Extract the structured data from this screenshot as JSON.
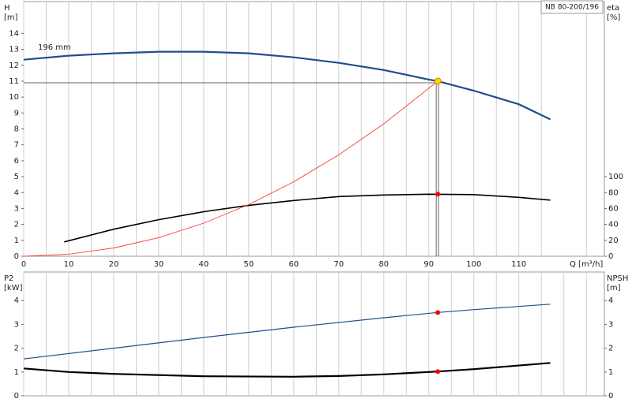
{
  "chart_data": [
    {
      "type": "line",
      "title": "NB 80-200/196",
      "ylabel": [
        "H",
        "[m]"
      ],
      "y2label": [
        "eta",
        "[%]"
      ],
      "xlabel": "Q [m³/h]",
      "annotation": "196 mm",
      "xlim": [
        0,
        129
      ],
      "xticks": [
        0,
        10,
        20,
        30,
        40,
        50,
        60,
        70,
        80,
        90,
        100,
        110
      ],
      "xgrid": [
        5,
        15,
        25,
        35,
        45,
        55,
        65,
        75,
        85,
        95,
        105,
        115,
        125
      ],
      "ylim": [
        0,
        16
      ],
      "yticks": [
        0,
        1,
        2,
        3,
        4,
        5,
        6,
        7,
        8,
        9,
        10,
        11,
        12,
        13,
        14
      ],
      "y2lim": [
        0,
        320
      ],
      "y2ticks": [
        0,
        20,
        40,
        60,
        80,
        100
      ],
      "series": [
        {
          "color": "#1f4e8c",
          "linewidth": 2.2,
          "x": [
            0,
            10,
            20,
            30,
            40,
            50,
            60,
            70,
            80,
            90,
            92,
            100,
            110,
            117
          ],
          "values": [
            12.35,
            12.6,
            12.75,
            12.85,
            12.85,
            12.75,
            12.5,
            12.15,
            11.7,
            11.1,
            11.0,
            10.4,
            9.55,
            8.6
          ]
        },
        {
          "axis": "y2",
          "color": "#000000",
          "linewidth": 1.6,
          "x": [
            9,
            20,
            30,
            40,
            50,
            60,
            70,
            80,
            90,
            100,
            110,
            117
          ],
          "values": [
            18,
            34,
            46,
            56,
            64,
            70,
            75,
            77,
            78,
            77.5,
            74,
            70.5
          ]
        },
        {
          "color": "#ff3b3b",
          "linewidth": 0.9,
          "x": [
            0,
            10,
            20,
            30,
            40,
            50,
            60,
            70,
            80,
            92
          ],
          "values": [
            0,
            0.13,
            0.52,
            1.17,
            2.08,
            3.25,
            4.68,
            6.37,
            8.32,
            11.0
          ]
        }
      ],
      "duty_point": {
        "x": 92,
        "y": 11.0,
        "y2": 78,
        "color": "#ffd700",
        "line_color": "#666666",
        "marker_color": "#ff0000"
      }
    },
    {
      "type": "line",
      "ylabel": [
        "P2",
        "[kW]"
      ],
      "y2label": [
        "NPSH",
        "[m]"
      ],
      "xlim": [
        0,
        129
      ],
      "xgrid": [
        0,
        5,
        10,
        15,
        20,
        25,
        30,
        35,
        40,
        45,
        50,
        55,
        60,
        65,
        70,
        75,
        80,
        85,
        90,
        95,
        100,
        105,
        110,
        115,
        120,
        125
      ],
      "ylim": [
        0,
        5.2
      ],
      "yticks": [
        0,
        1,
        2,
        3,
        4
      ],
      "y2lim": [
        0,
        5.2
      ],
      "y2ticks": [
        0,
        1,
        2,
        3,
        4
      ],
      "series": [
        {
          "color": "#1f4e8c",
          "linewidth": 1.2,
          "x": [
            0,
            20,
            40,
            60,
            80,
            92,
            100,
            117
          ],
          "values": [
            1.55,
            2.0,
            2.45,
            2.88,
            3.28,
            3.5,
            3.62,
            3.85
          ]
        },
        {
          "axis": "y2",
          "color": "#000000",
          "linewidth": 2.2,
          "x": [
            0,
            10,
            20,
            40,
            60,
            70,
            80,
            92,
            100,
            117
          ],
          "values": [
            1.15,
            1.0,
            0.92,
            0.82,
            0.8,
            0.83,
            0.9,
            1.02,
            1.12,
            1.38
          ]
        }
      ],
      "duty_point": {
        "x": 92,
        "y": 3.5,
        "y2": 1.02,
        "marker_color": "#ff0000"
      }
    }
  ]
}
